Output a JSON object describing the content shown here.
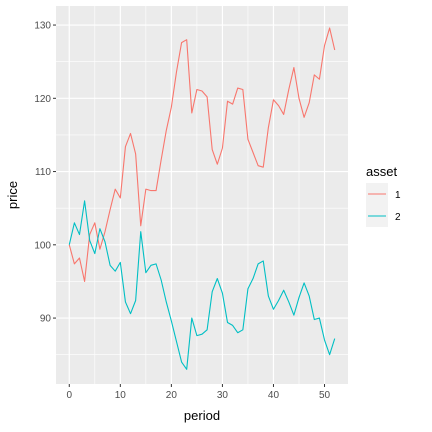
{
  "chart_data": {
    "type": "line",
    "xlabel": "period",
    "ylabel": "price",
    "xlim": [
      -2.6,
      54.6
    ],
    "ylim": [
      81,
      132.6
    ],
    "x_ticks": [
      0,
      10,
      20,
      30,
      40,
      50
    ],
    "y_ticks": [
      90,
      100,
      110,
      120,
      130
    ],
    "grid": true,
    "legend": {
      "title": "asset",
      "position": "right"
    },
    "series": [
      {
        "name": "1",
        "color": "#F8766D",
        "x": [
          0,
          1,
          2,
          3,
          4,
          5,
          6,
          7,
          8,
          9,
          10,
          11,
          12,
          13,
          14,
          15,
          16,
          17,
          18,
          19,
          20,
          21,
          22,
          23,
          24,
          25,
          26,
          27,
          28,
          29,
          30,
          31,
          32,
          33,
          34,
          35,
          36,
          37,
          38,
          39,
          40,
          41,
          42,
          43,
          44,
          45,
          46,
          47,
          48,
          49,
          50,
          51,
          52
        ],
        "values": [
          100.0,
          97.4,
          98.2,
          95.0,
          101.4,
          103.0,
          99.4,
          101.8,
          104.8,
          107.6,
          106.4,
          113.4,
          115.2,
          112.4,
          102.6,
          107.6,
          107.4,
          107.4,
          111.6,
          115.6,
          118.8,
          123.6,
          127.6,
          128.0,
          118.0,
          121.2,
          121.0,
          120.2,
          113.0,
          111.0,
          113.2,
          119.6,
          119.2,
          121.4,
          121.2,
          114.4,
          112.6,
          110.8,
          110.6,
          116.0,
          119.8,
          119.0,
          117.8,
          121.2,
          124.2,
          120.0,
          117.4,
          119.4,
          123.2,
          122.6,
          127.2,
          129.6,
          126.6
        ]
      },
      {
        "name": "2",
        "color": "#00BFC4",
        "x": [
          0,
          1,
          2,
          3,
          4,
          5,
          6,
          7,
          8,
          9,
          10,
          11,
          12,
          13,
          14,
          15,
          16,
          17,
          18,
          19,
          20,
          21,
          22,
          23,
          24,
          25,
          26,
          27,
          28,
          29,
          30,
          31,
          32,
          33,
          34,
          35,
          36,
          37,
          38,
          39,
          40,
          41,
          42,
          43,
          44,
          45,
          46,
          47,
          48,
          49,
          50,
          51,
          52
        ],
        "values": [
          100.0,
          103.0,
          101.4,
          106.0,
          100.6,
          98.8,
          102.2,
          100.4,
          97.2,
          96.4,
          97.6,
          92.2,
          90.6,
          92.4,
          101.8,
          96.2,
          97.2,
          97.4,
          95.2,
          92.2,
          89.6,
          86.8,
          84.0,
          83.0,
          90.0,
          87.6,
          87.8,
          88.4,
          93.6,
          95.4,
          93.4,
          89.4,
          89.0,
          88.0,
          88.4,
          94.0,
          95.4,
          97.4,
          97.8,
          93.0,
          91.2,
          92.4,
          93.8,
          92.2,
          90.4,
          92.8,
          94.8,
          93.0,
          89.8,
          90.0,
          87.0,
          85.0,
          87.2
        ]
      }
    ]
  }
}
